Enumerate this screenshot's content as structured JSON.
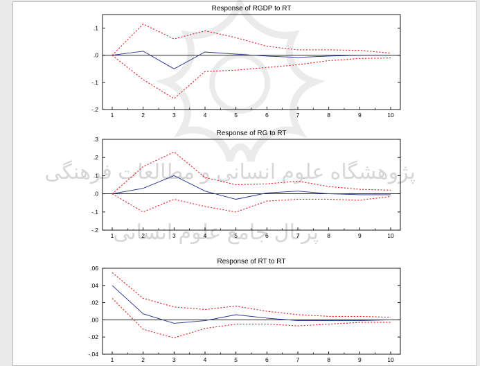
{
  "colors": {
    "response_line": "#1f2f8f",
    "band_line": "#e02020",
    "zero_line": "#000000",
    "axis": "#000000",
    "watermark": "#8c8c8c"
  },
  "watermark": {
    "text_1": "پژوهشگاه علوم انسانی و مطالعات فرهنگی",
    "text_2": "پرتال جامع علوم انسانی"
  },
  "chart_data": [
    {
      "type": "line",
      "title": "Response of RGDP to RT",
      "x": [
        1,
        2,
        3,
        4,
        5,
        6,
        7,
        8,
        9,
        10
      ],
      "xticks": [
        "1",
        "2",
        "3",
        "4",
        "5",
        "6",
        "7",
        "8",
        "9",
        "10"
      ],
      "ylim": [
        -0.2,
        0.15
      ],
      "yticks": [
        0.1,
        0.0,
        -0.1,
        -0.2
      ],
      "ytick_labels": [
        ".1",
        ".0",
        "-.1",
        "-.2"
      ],
      "series": [
        {
          "role": "response",
          "values": [
            0.0,
            0.015,
            -0.05,
            0.012,
            0.004,
            -0.003,
            -0.008,
            -0.003,
            0.0,
            0.0
          ]
        },
        {
          "role": "upper_band",
          "values": [
            0.0,
            0.115,
            0.06,
            0.09,
            0.065,
            0.033,
            0.02,
            0.02,
            0.018,
            0.008
          ]
        },
        {
          "role": "lower_band",
          "values": [
            0.0,
            -0.09,
            -0.16,
            -0.06,
            -0.055,
            -0.045,
            -0.035,
            -0.02,
            -0.012,
            -0.01
          ]
        }
      ]
    },
    {
      "type": "line",
      "title": "Response of RG to RT",
      "x": [
        1,
        2,
        3,
        4,
        5,
        6,
        7,
        8,
        9,
        10
      ],
      "xticks": [
        "1",
        "2",
        "3",
        "4",
        "5",
        "6",
        "7",
        "8",
        "9",
        "10"
      ],
      "ylim": [
        -0.2,
        0.3
      ],
      "yticks": [
        0.3,
        0.2,
        0.1,
        0.0,
        -0.1,
        -0.2
      ],
      "ytick_labels": [
        ".3",
        ".2",
        ".1",
        ".0",
        "-.1",
        "-.2"
      ],
      "series": [
        {
          "role": "response",
          "values": [
            0.0,
            0.03,
            0.1,
            0.015,
            -0.03,
            0.005,
            0.015,
            0.0,
            -0.005,
            -0.005
          ]
        },
        {
          "role": "upper_band",
          "values": [
            0.0,
            0.15,
            0.23,
            0.09,
            0.05,
            0.055,
            0.07,
            0.04,
            0.025,
            0.02
          ]
        },
        {
          "role": "lower_band",
          "values": [
            0.0,
            -0.1,
            -0.03,
            -0.07,
            -0.1,
            -0.04,
            -0.03,
            -0.03,
            -0.035,
            -0.015
          ]
        }
      ]
    },
    {
      "type": "line",
      "title": "Response of RT to RT",
      "x": [
        1,
        2,
        3,
        4,
        5,
        6,
        7,
        8,
        9,
        10
      ],
      "xticks": [
        "1",
        "2",
        "3",
        "4",
        "5",
        "6",
        "7",
        "8",
        "9",
        "10"
      ],
      "ylim": [
        -0.04,
        0.06
      ],
      "yticks": [
        0.06,
        0.04,
        0.02,
        0.0,
        -0.02,
        -0.04
      ],
      "ytick_labels": [
        ".06",
        ".04",
        ".02",
        ".00",
        "-.02",
        "-.04"
      ],
      "series": [
        {
          "role": "response",
          "values": [
            0.04,
            0.007,
            -0.004,
            -0.001,
            0.006,
            0.002,
            -0.001,
            -0.001,
            -0.001,
            0.0
          ]
        },
        {
          "role": "upper_band",
          "values": [
            0.055,
            0.025,
            0.015,
            0.012,
            0.016,
            0.01,
            0.006,
            0.004,
            0.004,
            0.003
          ]
        },
        {
          "role": "lower_band",
          "values": [
            0.025,
            -0.011,
            -0.021,
            -0.01,
            -0.005,
            -0.005,
            -0.007,
            -0.005,
            -0.003,
            -0.003
          ]
        }
      ]
    }
  ]
}
